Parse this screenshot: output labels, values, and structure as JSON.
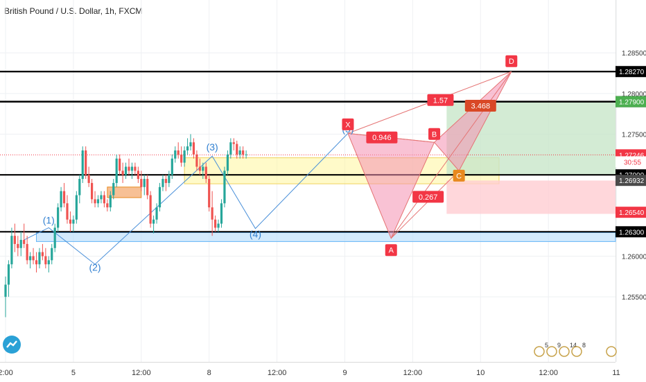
{
  "title": "British Pound / U.S. Dollar, 1h, FXCM",
  "colors": {
    "bull": "#26a69a",
    "bear": "#ef5350",
    "level": "#000000",
    "harmonic_fill": "#f48fb1",
    "harmonic_edge": "#e57373",
    "wave_line": "#4a90d9",
    "badge_red": "#f23645",
    "badge_orange": "#e8891e",
    "yellow_zone": "#fff59d",
    "blue_zone": "#bbdefb",
    "target_zone": "#c8e6c9",
    "stop_zone": "#ffcdd2",
    "current_price": "#f23645"
  },
  "chart_data": {
    "type": "candlestick",
    "symbol": "British Pound / U.S. Dollar",
    "interval": "1h",
    "source": "FXCM",
    "ylim": [
      1.247,
      1.2915
    ],
    "price_ticks": [
      "1.25500",
      "1.26000",
      "1.27500",
      "1.28000",
      "1.28500"
    ],
    "time_ticks": [
      {
        "label": "2:00",
        "t": 0
      },
      {
        "label": "5",
        "t": 22
      },
      {
        "label": "12:00",
        "t": 44
      },
      {
        "label": "8",
        "t": 66
      },
      {
        "label": "12:00",
        "t": 88
      },
      {
        "label": "9",
        "t": 110
      },
      {
        "label": "12:00",
        "t": 132
      },
      {
        "label": "10",
        "t": 154
      },
      {
        "label": "12:00",
        "t": 176
      },
      {
        "label": "11",
        "t": 198
      }
    ],
    "candles": [
      [
        1.255,
        1.2575,
        1.2525,
        1.2565
      ],
      [
        1.2565,
        1.2595,
        1.255,
        1.259
      ],
      [
        1.259,
        1.2635,
        1.2585,
        1.2625
      ],
      [
        1.2625,
        1.264,
        1.2605,
        1.2615
      ],
      [
        1.2615,
        1.2625,
        1.26,
        1.261
      ],
      [
        1.261,
        1.263,
        1.26,
        1.262
      ],
      [
        1.262,
        1.264,
        1.261,
        1.2615
      ],
      [
        1.2615,
        1.2625,
        1.259,
        1.2595
      ],
      [
        1.2595,
        1.2605,
        1.2585,
        1.26
      ],
      [
        1.26,
        1.261,
        1.259,
        1.2595
      ],
      [
        1.2595,
        1.2605,
        1.258,
        1.259
      ],
      [
        1.259,
        1.261,
        1.2585,
        1.2605
      ],
      [
        1.2605,
        1.2615,
        1.2595,
        1.26
      ],
      [
        1.26,
        1.261,
        1.2585,
        1.259
      ],
      [
        1.259,
        1.26,
        1.258,
        1.2595
      ],
      [
        1.2595,
        1.2615,
        1.259,
        1.261
      ],
      [
        1.261,
        1.264,
        1.2605,
        1.2635
      ],
      [
        1.2635,
        1.2665,
        1.263,
        1.266
      ],
      [
        1.266,
        1.2685,
        1.2655,
        1.268
      ],
      [
        1.268,
        1.269,
        1.266,
        1.2665
      ],
      [
        1.2665,
        1.2675,
        1.264,
        1.2645
      ],
      [
        1.2645,
        1.2655,
        1.263,
        1.264
      ],
      [
        1.264,
        1.265,
        1.263,
        1.2645
      ],
      [
        1.2645,
        1.268,
        1.264,
        1.2675
      ],
      [
        1.2675,
        1.27,
        1.2665,
        1.2695
      ],
      [
        1.2695,
        1.2735,
        1.269,
        1.273
      ],
      [
        1.273,
        1.2735,
        1.2695,
        1.27
      ],
      [
        1.27,
        1.271,
        1.2685,
        1.269
      ],
      [
        1.269,
        1.2695,
        1.2665,
        1.267
      ],
      [
        1.267,
        1.268,
        1.266,
        1.2665
      ],
      [
        1.2665,
        1.2675,
        1.266,
        1.267
      ],
      [
        1.267,
        1.268,
        1.2665,
        1.2675
      ],
      [
        1.2675,
        1.268,
        1.266,
        1.2665
      ],
      [
        1.2665,
        1.267,
        1.2655,
        1.266
      ],
      [
        1.266,
        1.268,
        1.2655,
        1.2675
      ],
      [
        1.2675,
        1.2695,
        1.267,
        1.269
      ],
      [
        1.269,
        1.2725,
        1.2685,
        1.272
      ],
      [
        1.272,
        1.2725,
        1.27,
        1.2705
      ],
      [
        1.2705,
        1.2715,
        1.269,
        1.27
      ],
      [
        1.27,
        1.2715,
        1.2695,
        1.271
      ],
      [
        1.271,
        1.272,
        1.27,
        1.2705
      ],
      [
        1.2705,
        1.2715,
        1.2695,
        1.271
      ],
      [
        1.271,
        1.2715,
        1.27,
        1.2705
      ],
      [
        1.2705,
        1.271,
        1.269,
        1.2695
      ],
      [
        1.2695,
        1.2705,
        1.268,
        1.2685
      ],
      [
        1.2685,
        1.27,
        1.2675,
        1.2695
      ],
      [
        1.2695,
        1.27,
        1.267,
        1.2675
      ],
      [
        1.2675,
        1.268,
        1.2635,
        1.264
      ],
      [
        1.264,
        1.265,
        1.2628,
        1.2645
      ],
      [
        1.2645,
        1.2665,
        1.264,
        1.266
      ],
      [
        1.266,
        1.269,
        1.2655,
        1.2685
      ],
      [
        1.2685,
        1.27,
        1.268,
        1.2695
      ],
      [
        1.2695,
        1.27,
        1.268,
        1.269
      ],
      [
        1.269,
        1.2705,
        1.2685,
        1.27
      ],
      [
        1.27,
        1.2725,
        1.2695,
        1.272
      ],
      [
        1.272,
        1.2735,
        1.2715,
        1.273
      ],
      [
        1.273,
        1.274,
        1.272,
        1.2725
      ],
      [
        1.2725,
        1.2735,
        1.271,
        1.2715
      ],
      [
        1.2715,
        1.2735,
        1.271,
        1.273
      ],
      [
        1.273,
        1.2745,
        1.2725,
        1.2735
      ],
      [
        1.2735,
        1.275,
        1.273,
        1.274
      ],
      [
        1.274,
        1.2745,
        1.272,
        1.2725
      ],
      [
        1.2725,
        1.273,
        1.2705,
        1.271
      ],
      [
        1.271,
        1.272,
        1.27,
        1.2705
      ],
      [
        1.2705,
        1.2715,
        1.2695,
        1.271
      ],
      [
        1.271,
        1.2715,
        1.269,
        1.2695
      ],
      [
        1.2695,
        1.27,
        1.2655,
        1.266
      ],
      [
        1.266,
        1.268,
        1.2625,
        1.2645
      ],
      [
        1.2645,
        1.265,
        1.263,
        1.2635
      ],
      [
        1.2635,
        1.2645,
        1.263,
        1.264
      ],
      [
        1.264,
        1.267,
        1.2635,
        1.2665
      ],
      [
        1.2665,
        1.271,
        1.266,
        1.2705
      ],
      [
        1.2705,
        1.273,
        1.27,
        1.2725
      ],
      [
        1.2725,
        1.2745,
        1.272,
        1.274
      ],
      [
        1.274,
        1.2745,
        1.273,
        1.2738
      ],
      [
        1.2738,
        1.2742,
        1.272,
        1.2725
      ],
      [
        1.2725,
        1.2735,
        1.272,
        1.273
      ],
      [
        1.273,
        1.2735,
        1.272,
        1.2725
      ],
      [
        1.2725,
        1.273,
        1.272,
        1.2725
      ]
    ],
    "harmonic": {
      "points": {
        "X": {
          "t": 111,
          "p": 1.2751
        },
        "A": {
          "t": 125,
          "p": 1.2622
        },
        "B": {
          "t": 139,
          "p": 1.274
        },
        "C": {
          "t": 147,
          "p": 1.2705
        },
        "D": {
          "t": 164,
          "p": 1.2827
        }
      },
      "ratios": [
        {
          "text": "0.946",
          "t": 122,
          "p": 1.2746
        },
        {
          "text": "0.267",
          "t": 137,
          "p": 1.2673
        },
        {
          "text": "1.57",
          "t": 141,
          "p": 1.2792
        },
        {
          "text": "3.468",
          "t": 154,
          "p": 1.2785
        }
      ]
    },
    "waves": [
      {
        "label": "(1)",
        "t": 14,
        "p": 1.264
      },
      {
        "label": "(2)",
        "t": 29,
        "p": 1.2582
      },
      {
        "label": "(3)",
        "t": 67,
        "p": 1.273
      },
      {
        "label": "(4)",
        "t": 81,
        "p": 1.2623
      },
      {
        "label": "(5)",
        "t": 111,
        "p": 1.2752
      }
    ],
    "wave_path": [
      [
        6,
        1.262
      ],
      [
        14,
        1.2635
      ],
      [
        29,
        1.259
      ],
      [
        67,
        1.2723
      ],
      [
        81,
        1.2634
      ],
      [
        111,
        1.2751
      ]
    ],
    "levels": [
      {
        "price": 1.2827,
        "label": "1.28270",
        "width": 2.2
      },
      {
        "price": 1.279,
        "label": "1.27900",
        "width": 2.4
      },
      {
        "price": 1.27,
        "label": "1.27000",
        "width": 2.2
      },
      {
        "price": 1.263,
        "label": "1.26300",
        "width": 2.2
      }
    ],
    "zones": [
      {
        "kind": "yellow",
        "t0": 58,
        "t1": 160,
        "p0": 1.2689,
        "p1": 1.2721
      },
      {
        "kind": "blue",
        "t0": 10,
        "t1": 198,
        "p0": 1.2618,
        "p1": 1.2629
      },
      {
        "kind": "orange_small",
        "t0": 33,
        "t1": 44,
        "p0": 1.2672,
        "p1": 1.2685
      },
      {
        "kind": "target",
        "t0": 143,
        "t1": 198,
        "p0": 1.27,
        "p1": 1.279
      },
      {
        "kind": "stop",
        "t0": 143,
        "t1": 198,
        "p0": 1.2652,
        "p1": 1.2693
      }
    ],
    "current_price": 1.27246,
    "axis_labels": [
      {
        "text": "1.27900",
        "price": 1.279,
        "style": "green"
      },
      {
        "text": "1.27246",
        "price": 1.27246,
        "style": "red"
      },
      {
        "text": "30:55",
        "price": 1.2716,
        "style": "timer"
      },
      {
        "text": "1.26932",
        "price": 1.26932,
        "style": "grey"
      },
      {
        "text": "1.26540",
        "price": 1.2654,
        "style": "red"
      }
    ],
    "event_markers": [
      "5",
      "9",
      "14",
      "8"
    ]
  }
}
